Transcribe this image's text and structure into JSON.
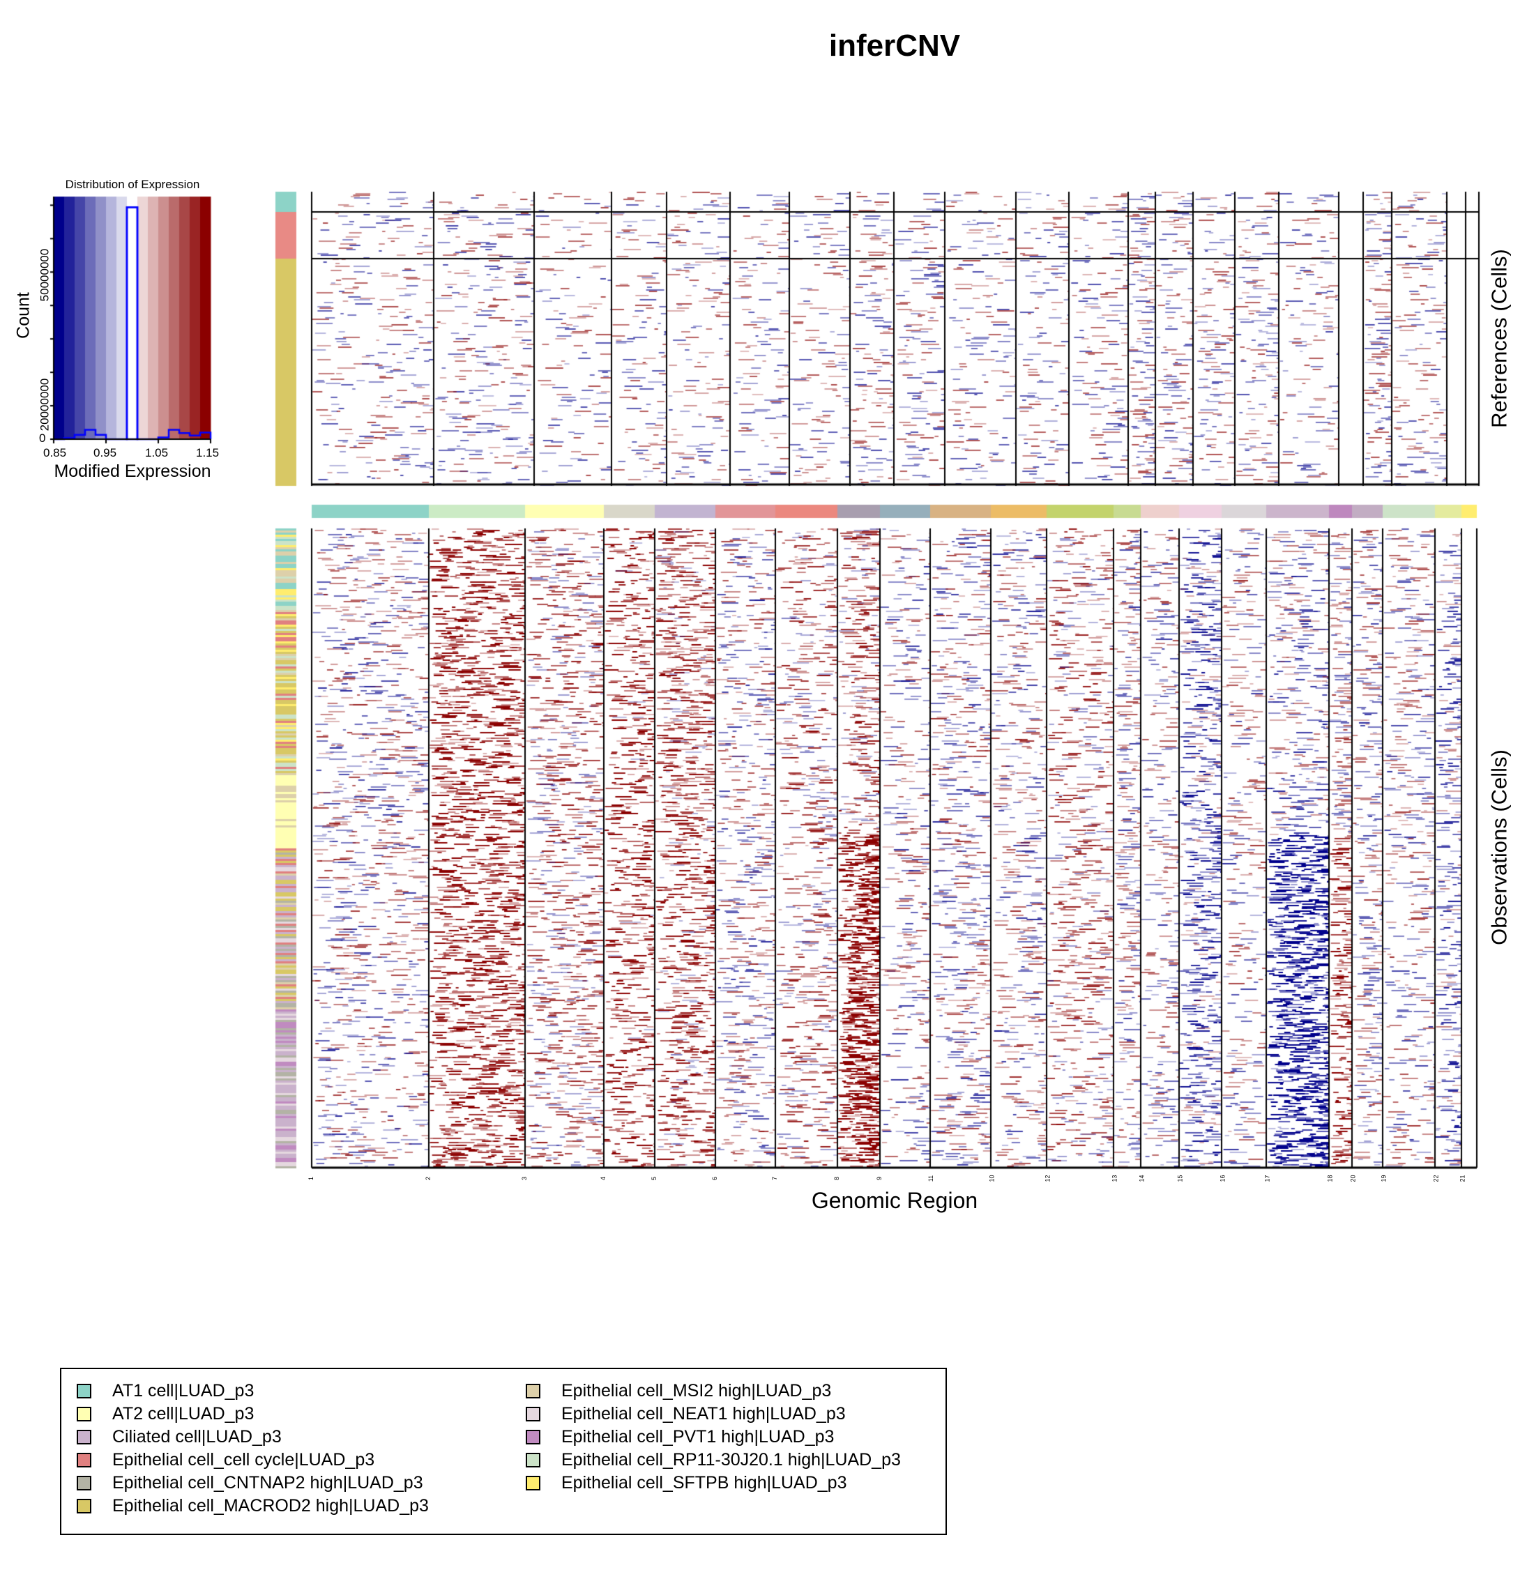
{
  "title": "inferCNV",
  "colors": {
    "low": "#00008B",
    "mid": "#FFFFFF",
    "high": "#8B0000",
    "hist_outline": "#0000FF"
  },
  "chart_data": [
    {
      "type": "bar",
      "title": "Distribution of Expression",
      "xlabel": "Modified Expression",
      "ylabel": "Count",
      "xlim": [
        0.85,
        1.15
      ],
      "xticks": [
        "0.85",
        "0.95",
        "1.05",
        "1.15"
      ],
      "yticks": [
        "0",
        "20000000",
        "50000000"
      ],
      "bin_edges": [
        0.85,
        0.87,
        0.89,
        0.91,
        0.93,
        0.95,
        0.97,
        0.99,
        1.01,
        1.03,
        1.05,
        1.07,
        1.09,
        1.11,
        1.13,
        1.15
      ],
      "values": [
        0,
        300000,
        1300000,
        2800000,
        1300000,
        0,
        0,
        69400000,
        0,
        0,
        500000,
        2800000,
        1800000,
        1100000,
        2000000
      ],
      "ylim": [
        0,
        70000000
      ]
    },
    {
      "type": "heatmap",
      "title": "inferCNV",
      "xlabel": "Genomic Region",
      "panels": [
        {
          "ylabel": "References (Cells)"
        },
        {
          "ylabel": "Observations (Cells)"
        }
      ],
      "chromosomes": [
        {
          "label": "1",
          "color": "#8DD3C7"
        },
        {
          "label": "2",
          "color": "#CCEBC5"
        },
        {
          "label": "3",
          "color": "#FFFFB3"
        },
        {
          "label": "4",
          "color": "#D9D7C9"
        },
        {
          "label": "5",
          "color": "#C2B4D1"
        },
        {
          "label": "6",
          "color": "#E29598"
        },
        {
          "label": "7",
          "color": "#EB887F"
        },
        {
          "label": "8",
          "color": "#A89EAF"
        },
        {
          "label": "9",
          "color": "#96AFBB"
        },
        {
          "label": "11",
          "color": "#D8B283"
        },
        {
          "label": "10",
          "color": "#ECBC66"
        },
        {
          "label": "12",
          "color": "#C3D36C"
        },
        {
          "label": "13",
          "color": "#C8DB92"
        },
        {
          "label": "14",
          "color": "#EED0CD"
        },
        {
          "label": "15",
          "color": "#EFD1E1"
        },
        {
          "label": "16",
          "color": "#DBD6D9"
        },
        {
          "label": "17",
          "color": "#CCB5CC"
        },
        {
          "label": "18",
          "color": "#BE88BE"
        },
        {
          "label": "20",
          "color": "#C2ADC3"
        },
        {
          "label": "19",
          "color": "#CDE3C8"
        },
        {
          "label": "22",
          "color": "#E4EB9E"
        },
        {
          "label": "21",
          "color": "#FFED6F"
        }
      ],
      "color_scale": {
        "min": 0.85,
        "center": 1.0,
        "max": 1.15
      }
    }
  ],
  "legend": [
    {
      "label": "AT1 cell|LUAD_p3",
      "color": "#8DD3C7"
    },
    {
      "label": "AT2 cell|LUAD_p3",
      "color": "#FFFFB3"
    },
    {
      "label": "Ciliated cell|LUAD_p3",
      "color": "#CAB2CC"
    },
    {
      "label": "Epithelial cell_cell cycle|LUAD_p3",
      "color": "#E08080"
    },
    {
      "label": "Epithelial cell_CNTNAP2 high|LUAD_p3",
      "color": "#B3B3A5"
    },
    {
      "label": "Epithelial cell_MACROD2 high|LUAD_p3",
      "color": "#D8C865"
    },
    {
      "label": "Epithelial cell_MSI2 high|LUAD_p3",
      "color": "#DDD0AA"
    },
    {
      "label": "Epithelial cell_NEAT1 high|LUAD_p3",
      "color": "#E5D8DF"
    },
    {
      "label": "Epithelial cell_PVT1 high|LUAD_p3",
      "color": "#C08BC0"
    },
    {
      "label": "Epithelial cell_RP11-30J20.1 high|LUAD_p3",
      "color": "#CCE3C8"
    },
    {
      "label": "Epithelial cell_SFTPB high|LUAD_p3",
      "color": "#FFED6F"
    }
  ]
}
